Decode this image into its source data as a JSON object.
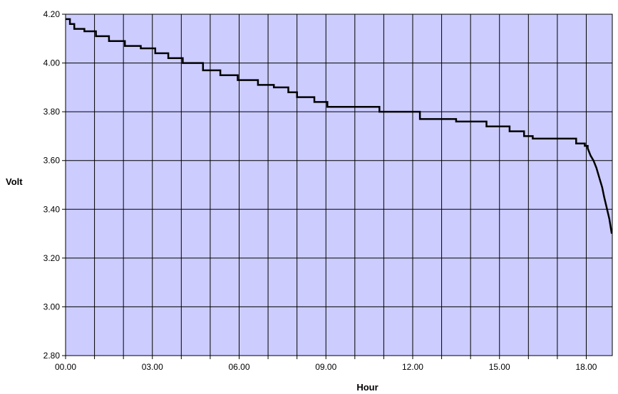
{
  "colors": {
    "plot_background": "#ccccff",
    "gridline": "#000000",
    "series_line": "#000000",
    "page_background": "#ffffff"
  },
  "chart_data": {
    "type": "line",
    "title": "",
    "xlabel": "Hour",
    "ylabel": "Volt",
    "xlim": [
      0,
      18.9
    ],
    "ylim": [
      2.8,
      4.2
    ],
    "x_tick_values": [
      0,
      3,
      6,
      9,
      12,
      15,
      18
    ],
    "x_tick_labels": [
      "00.00",
      "03.00",
      "06.00",
      "09.00",
      "12.00",
      "15.00",
      "18.00"
    ],
    "x_minor_grid_step": 1,
    "y_tick_values": [
      2.8,
      3.0,
      3.2,
      3.4,
      3.6,
      3.8,
      4.0,
      4.2
    ],
    "y_tick_labels": [
      "2.80",
      "3.00",
      "3.20",
      "3.40",
      "3.60",
      "3.80",
      "4.00",
      "4.20"
    ],
    "grid": true,
    "legend": "none",
    "series": [
      {
        "x": [
          0.0,
          0.15,
          0.15,
          0.3,
          0.3,
          0.65,
          0.65,
          1.05,
          1.05,
          1.5,
          1.5,
          2.05,
          2.05,
          2.6,
          2.6,
          3.1,
          3.1,
          3.55,
          3.55,
          4.05,
          4.05,
          4.75,
          4.75,
          5.35,
          5.35,
          5.95,
          5.95,
          6.65,
          6.65,
          7.2,
          7.2,
          7.7,
          7.7,
          8.0,
          8.0,
          8.6,
          8.6,
          9.05,
          9.05,
          10.85,
          10.85,
          12.25,
          12.25,
          13.5,
          13.5,
          14.55,
          14.55,
          15.35,
          15.35,
          15.85,
          15.85,
          16.15,
          16.15,
          17.65,
          17.65,
          17.95,
          17.95,
          18.05,
          18.05,
          18.15,
          18.25,
          18.35,
          18.45,
          18.55,
          18.62,
          18.7,
          18.8,
          18.88
        ],
        "y": [
          4.18,
          4.18,
          4.16,
          4.16,
          4.14,
          4.14,
          4.13,
          4.13,
          4.11,
          4.11,
          4.09,
          4.09,
          4.07,
          4.07,
          4.06,
          4.06,
          4.04,
          4.04,
          4.02,
          4.02,
          4.0,
          4.0,
          3.97,
          3.97,
          3.95,
          3.95,
          3.93,
          3.93,
          3.91,
          3.91,
          3.9,
          3.9,
          3.88,
          3.88,
          3.86,
          3.86,
          3.84,
          3.84,
          3.82,
          3.82,
          3.8,
          3.8,
          3.77,
          3.77,
          3.76,
          3.76,
          3.74,
          3.74,
          3.72,
          3.72,
          3.7,
          3.7,
          3.69,
          3.69,
          3.67,
          3.67,
          3.66,
          3.66,
          3.65,
          3.62,
          3.6,
          3.57,
          3.53,
          3.49,
          3.45,
          3.41,
          3.36,
          3.3
        ]
      }
    ]
  }
}
